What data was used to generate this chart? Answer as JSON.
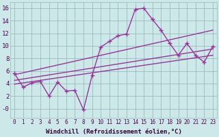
{
  "xlabel": "Windchill (Refroidissement éolien,°C)",
  "bg_color": "#cce8e8",
  "line_color": "#993399",
  "grid_color": "#99bbbb",
  "xlim": [
    -0.5,
    23.5
  ],
  "ylim": [
    -1.5,
    17
  ],
  "yticks": [
    0,
    2,
    4,
    6,
    8,
    10,
    12,
    14,
    16
  ],
  "ytick_labels": [
    "-0",
    "2",
    "4",
    "6",
    "8",
    "10",
    "12",
    "14",
    "16"
  ],
  "xticks": [
    0,
    1,
    2,
    3,
    4,
    5,
    6,
    7,
    8,
    9,
    10,
    11,
    12,
    13,
    14,
    15,
    16,
    17,
    18,
    19,
    20,
    21,
    22,
    23
  ],
  "jagged_x": [
    0,
    1,
    2,
    3,
    4,
    5,
    6,
    7,
    8,
    9,
    10,
    11,
    12,
    13,
    14,
    15,
    16,
    17,
    18,
    19,
    20,
    21,
    22,
    23
  ],
  "jagged_y": [
    5.6,
    3.4,
    4.1,
    4.3,
    2.0,
    4.2,
    2.8,
    2.9,
    -0.2,
    5.3,
    9.8,
    10.7,
    11.6,
    11.9,
    15.8,
    16.0,
    14.2,
    12.5,
    10.4,
    8.5,
    10.4,
    8.5,
    7.4,
    9.9
  ],
  "line2_x": [
    0,
    23
  ],
  "line2_y": [
    3.9,
    8.5
  ],
  "line3_x": [
    0,
    23
  ],
  "line3_y": [
    4.5,
    9.5
  ],
  "line4_x": [
    0,
    23
  ],
  "line4_y": [
    5.4,
    12.5
  ],
  "marker": "+",
  "markersize": 4,
  "linewidth": 1.0
}
